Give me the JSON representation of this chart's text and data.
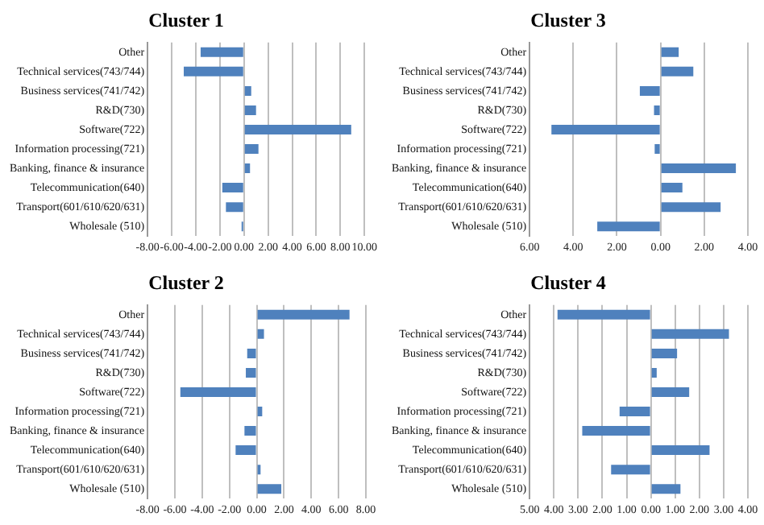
{
  "chart_data": [
    {
      "type": "bar",
      "orientation": "horizontal",
      "title": "Cluster 1",
      "grid": "x",
      "color": "#4f81bd",
      "categories": [
        "Other",
        "Technical services(743/744)",
        "Business services(741/742)",
        "R&D(730)",
        "Software(722)",
        "Information processing(721)",
        "Banking, finance & insurance",
        "Telecommunication(640)",
        "Transport(601/610/620/631)",
        "Wholesale (510)"
      ],
      "values": [
        -3.6,
        -5.0,
        0.6,
        1.0,
        8.9,
        1.2,
        0.5,
        -1.8,
        -1.5,
        -0.2
      ],
      "xlim": [
        -8,
        10
      ],
      "xticks": [
        {
          "value": -8,
          "label": "-8.00"
        },
        {
          "value": -6,
          "label": "-6.00"
        },
        {
          "value": -4,
          "label": "-4.00"
        },
        {
          "value": -2,
          "label": "-2.00"
        },
        {
          "value": 0,
          "label": "0.00"
        },
        {
          "value": 2,
          "label": "2.00"
        },
        {
          "value": 4,
          "label": "4.00"
        },
        {
          "value": 6,
          "label": "6.00"
        },
        {
          "value": 8,
          "label": "8.00"
        },
        {
          "value": 10,
          "label": "10.00"
        }
      ]
    },
    {
      "type": "bar",
      "orientation": "horizontal",
      "title": "Cluster 3",
      "grid": "x",
      "color": "#4f81bd",
      "categories": [
        "Other",
        "Technical services(743/744)",
        "Business services(741/742)",
        "R&D(730)",
        "Software(722)",
        "Information processing(721)",
        "Banking, finance & insurance",
        "Telecommunication(640)",
        "Transport(601/610/620/631)",
        "Wholesale (510)"
      ],
      "values": [
        0.83,
        1.5,
        -0.95,
        -0.3,
        -5.0,
        -0.27,
        3.45,
        1.0,
        2.75,
        -2.9
      ],
      "xlim": [
        -6,
        4
      ],
      "xticks": [
        {
          "value": -6,
          "label": "6.00"
        },
        {
          "value": -4,
          "label": "4.00"
        },
        {
          "value": -2,
          "label": "2.00"
        },
        {
          "value": 0,
          "label": "0.00"
        },
        {
          "value": 2,
          "label": "2.00"
        },
        {
          "value": 4,
          "label": "4.00"
        }
      ]
    },
    {
      "type": "bar",
      "orientation": "horizontal",
      "title": "Cluster 2",
      "grid": "x",
      "color": "#4f81bd",
      "categories": [
        "Other",
        "Technical services(743/744)",
        "Business services(741/742)",
        "R&D(730)",
        "Software(722)",
        "Information processing(721)",
        "Banking, finance & insurance",
        "Telecommunication(640)",
        "Transport(601/610/620/631)",
        "Wholesale (510)"
      ],
      "values": [
        6.8,
        0.53,
        -0.7,
        -0.8,
        -5.6,
        0.4,
        -0.9,
        -1.55,
        0.28,
        1.8
      ],
      "xlim": [
        -8,
        8
      ],
      "xticks": [
        {
          "value": -8,
          "label": "-8.00"
        },
        {
          "value": -6,
          "label": "-6.00"
        },
        {
          "value": -4,
          "label": "-4.00"
        },
        {
          "value": -2,
          "label": "-2.00"
        },
        {
          "value": 0,
          "label": "0.00"
        },
        {
          "value": 2,
          "label": "2.00"
        },
        {
          "value": 4,
          "label": "4.00"
        },
        {
          "value": 6,
          "label": "6.00"
        },
        {
          "value": 8,
          "label": "8.00"
        }
      ]
    },
    {
      "type": "bar",
      "orientation": "horizontal",
      "title": "Cluster 4",
      "grid": "x",
      "color": "#4f81bd",
      "categories": [
        "Other",
        "Technical services(743/744)",
        "Business services(741/742)",
        "R&D(730)",
        "Software(722)",
        "Information processing(721)",
        "Banking, finance & insurance",
        "Telecommunication(640)",
        "Transport(601/610/620/631)",
        "Wholesale (510)"
      ],
      "values": [
        -3.85,
        3.22,
        1.08,
        0.24,
        1.58,
        -1.29,
        -2.83,
        2.42,
        -1.64,
        1.22
      ],
      "xlim": [
        -5,
        4
      ],
      "xticks": [
        {
          "value": -5,
          "label": "5.00"
        },
        {
          "value": -4,
          "label": "4.00"
        },
        {
          "value": -3,
          "label": "3.00"
        },
        {
          "value": -2,
          "label": "2.00"
        },
        {
          "value": -1,
          "label": "1.00"
        },
        {
          "value": 0,
          "label": "0.00"
        },
        {
          "value": 1,
          "label": "1.00"
        },
        {
          "value": 2,
          "label": "2.00"
        },
        {
          "value": 3,
          "label": "3.00"
        },
        {
          "value": 4,
          "label": "4.00"
        }
      ]
    }
  ]
}
